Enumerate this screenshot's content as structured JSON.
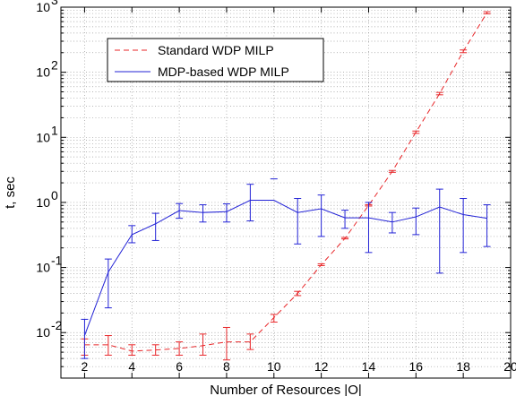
{
  "chart_data": {
    "type": "line",
    "xlabel": "Number of Resources |O|",
    "ylabel": "t, sec",
    "xlim": [
      1,
      20
    ],
    "ylim": [
      0.002,
      1000
    ],
    "yscale": "log",
    "grid": true,
    "legend_position": "top-left",
    "x_ticks": [
      "2",
      "4",
      "6",
      "8",
      "10",
      "12",
      "14",
      "16",
      "18",
      "20"
    ],
    "y_ticks": [
      {
        "base": "10",
        "exp": "-2",
        "value": 0.01
      },
      {
        "base": "10",
        "exp": "-1",
        "value": 0.1
      },
      {
        "base": "10",
        "exp": "0",
        "value": 1
      },
      {
        "base": "10",
        "exp": "1",
        "value": 10
      },
      {
        "base": "10",
        "exp": "2",
        "value": 100
      },
      {
        "base": "10",
        "exp": "3",
        "value": 1000
      }
    ],
    "series": [
      {
        "name": "Standard WDP MILP",
        "color": "#e8272a",
        "style": "dashed",
        "x": [
          2,
          3,
          4,
          5,
          6,
          7,
          8,
          9,
          10,
          11,
          12,
          13,
          14,
          15,
          16,
          17,
          18,
          19
        ],
        "y": [
          0.0065,
          0.0065,
          0.0052,
          0.0054,
          0.0057,
          0.0063,
          0.0072,
          0.0072,
          0.017,
          0.04,
          0.11,
          0.28,
          0.9,
          3.0,
          12,
          47,
          210,
          820
        ],
        "err_low": [
          0.0045,
          0.0045,
          0.0045,
          0.0045,
          0.0045,
          0.0045,
          0.0038,
          0.0055,
          0.0145,
          0.037,
          0.107,
          0.275,
          0.88,
          2.9,
          11.5,
          45,
          200,
          790
        ],
        "err_high": [
          0.008,
          0.009,
          0.0065,
          0.0065,
          0.0072,
          0.0095,
          0.012,
          0.0095,
          0.019,
          0.043,
          0.114,
          0.29,
          0.92,
          3.1,
          12.5,
          49,
          220,
          850
        ]
      },
      {
        "name": "MDP-based WDP MILP",
        "color": "#2323d6",
        "style": "solid",
        "x": [
          2,
          3,
          4,
          5,
          6,
          7,
          8,
          9,
          10,
          11,
          12,
          13,
          14,
          15,
          16,
          17,
          18,
          19
        ],
        "y": [
          0.009,
          0.085,
          0.32,
          0.47,
          0.75,
          0.7,
          0.72,
          1.08,
          1.08,
          0.7,
          0.8,
          0.58,
          0.58,
          0.5,
          0.6,
          0.85,
          0.65,
          0.57
        ],
        "err_low": [
          0.004,
          0.024,
          0.24,
          0.26,
          0.57,
          0.5,
          0.5,
          0.52,
          null,
          0.23,
          0.3,
          0.4,
          0.17,
          0.34,
          0.32,
          0.082,
          0.17,
          0.21
        ],
        "err_high": [
          0.016,
          0.135,
          0.44,
          0.68,
          0.96,
          0.92,
          0.95,
          1.9,
          2.3,
          1.15,
          1.3,
          0.76,
          1.0,
          0.7,
          0.82,
          1.6,
          1.15,
          0.92
        ]
      }
    ]
  }
}
